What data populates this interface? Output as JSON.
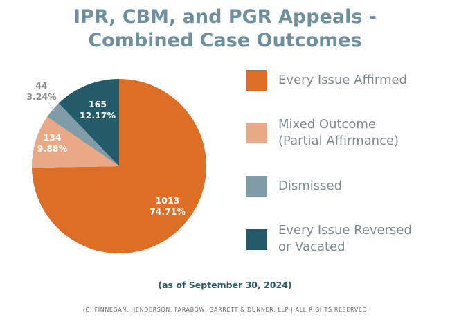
{
  "chart_data": {
    "type": "pie",
    "title_line1": "IPR, CBM, and PGR Appeals -",
    "title_line2": "Combined Case Outcomes",
    "slices": [
      {
        "label": "Every Issue Affirmed",
        "label_line2": "",
        "count": "1013",
        "percent": "74.71%",
        "value": 74.71,
        "color": "#dc6e26",
        "label_color": "#ffffff"
      },
      {
        "label": "Mixed Outcome",
        "label_line2": "(Partial Affirmance)",
        "count": "134",
        "percent": "9.88%",
        "value": 9.88,
        "color": "#eaa986",
        "label_color": "#ffffff"
      },
      {
        "label": "Dismissed",
        "label_line2": "",
        "count": "44",
        "percent": "3.24%",
        "value": 3.24,
        "color": "#7f9ca8",
        "label_color": "#8a8a8a"
      },
      {
        "label": "Every Issue Reversed",
        "label_line2": "or Vacated",
        "count": "165",
        "percent": "12.17%",
        "value": 12.17,
        "color": "#245b6b",
        "label_color": "#ffffff"
      }
    ],
    "note": "(as of September 30, 2024)",
    "copyright": "(c) Finnegan, Henderson, Farabow, Garrett & Dunner, LLP | All Rights Reserved"
  }
}
